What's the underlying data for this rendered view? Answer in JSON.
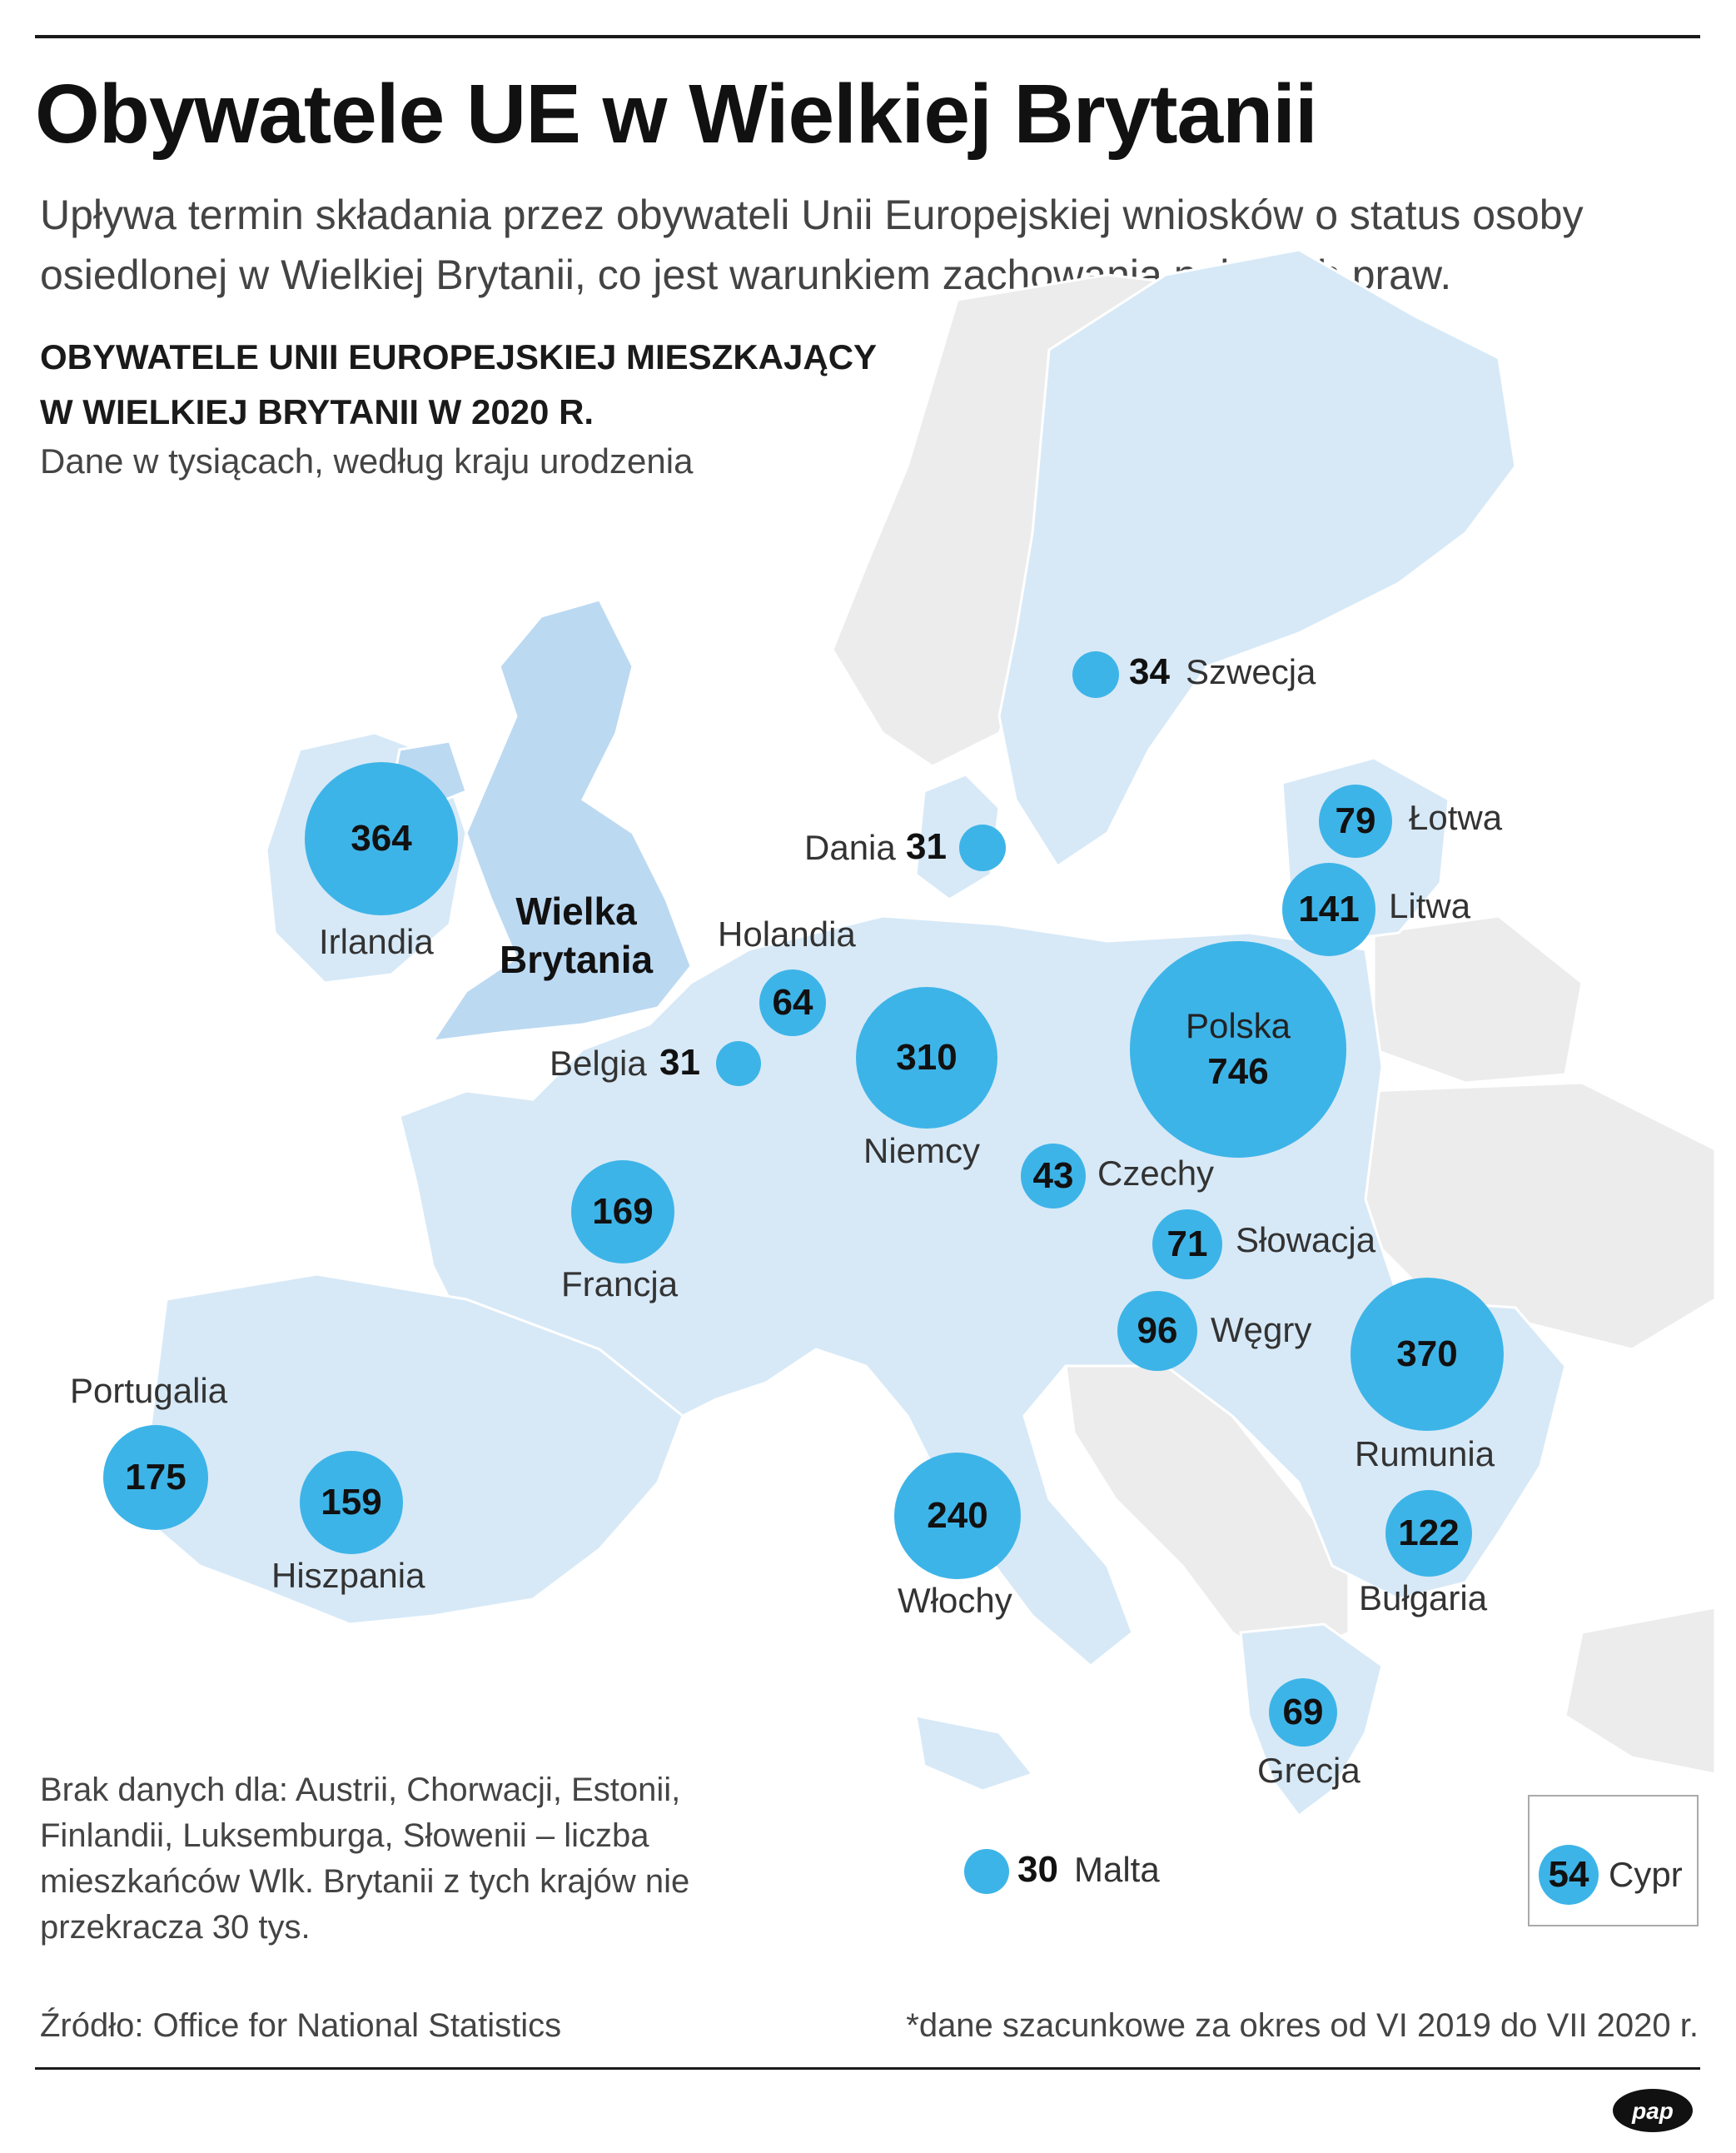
{
  "title": "Obywatele UE w Wielkiej Brytanii",
  "intro": "Upływa termin składania przez obywateli Unii Europejskiej wniosków o status osoby osiedlonej w Wielkiej Brytanii, co jest warunkiem zachowania nabytych praw.",
  "heading_line1": "OBYWATELE UNII EUROPEJSKIEJ MIESZKAJĄCY",
  "heading_line2": "W WIELKIEJ BRYTANII W 2020 R.",
  "subheading": "Dane w tysiącach, według kraju urodzenia",
  "uk_label_line1": "Wielka",
  "uk_label_line2": "Brytania",
  "countries": {
    "szwecja": {
      "name": "Szwecja",
      "value": "34"
    },
    "lotwa": {
      "name": "Łotwa",
      "value": "79"
    },
    "dania": {
      "name": "Dania",
      "value": "31"
    },
    "irlandia": {
      "name": "Irlandia",
      "value": "364"
    },
    "litwa": {
      "name": "Litwa",
      "value": "141"
    },
    "holandia": {
      "name": "Holandia",
      "value": "64"
    },
    "polska": {
      "name": "Polska",
      "value": "746"
    },
    "niemcy": {
      "name": "Niemcy",
      "value": "310"
    },
    "belgia": {
      "name": "Belgia",
      "value": "31"
    },
    "czechy": {
      "name": "Czechy",
      "value": "43"
    },
    "francja": {
      "name": "Francja",
      "value": "169"
    },
    "slowacja": {
      "name": "Słowacja",
      "value": "71"
    },
    "wegry": {
      "name": "Węgry",
      "value": "96"
    },
    "rumunia": {
      "name": "Rumunia",
      "value": "370"
    },
    "portugalia": {
      "name": "Portugalia",
      "value": "175"
    },
    "hiszpania": {
      "name": "Hiszpania",
      "value": "159"
    },
    "wlochy": {
      "name": "Włochy",
      "value": "240"
    },
    "bulgaria": {
      "name": "Bułgaria",
      "value": "122"
    },
    "grecja": {
      "name": "Grecja",
      "value": "69"
    },
    "malta": {
      "name": "Malta",
      "value": "30"
    },
    "cypr": {
      "name": "Cypr",
      "value": "54"
    }
  },
  "note": "Brak danych dla: Austrii, Chorwacji, Estonii, Finlandii, Luksemburga, Słowenii – liczba mieszkańców Wlk. Brytanii z tych krajów nie przekracza 30 tys.",
  "source": "Źródło: Office for National Statistics",
  "footnote": "*dane szacunkowe za okres od VI 2019 do VII 2020 r.",
  "logo": "pap",
  "colors": {
    "bubble": "#3db4e8",
    "eu_land": "#d7e9f7",
    "uk_land": "#bcd9f2",
    "non_eu_land": "#ececec",
    "border": "#ffffff"
  }
}
